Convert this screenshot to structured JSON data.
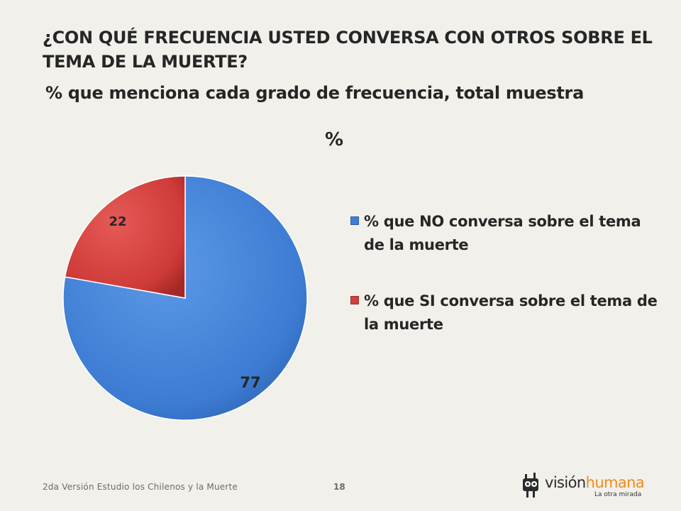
{
  "slide": {
    "title": "¿CON QUÉ FRECUENCIA USTED CONVERSA CON OTROS SOBRE EL TEMA DE LA MUERTE?",
    "subtitle": "% que menciona cada grado de frecuencia, total muestra"
  },
  "chart_data": {
    "type": "pie",
    "title": "%",
    "slices": [
      {
        "label": "% que NO conversa sobre el tema de la muerte",
        "value": 77,
        "data_label": "77",
        "color": "#3f7fd6"
      },
      {
        "label": "% que SI conversa sobre el tema de la muerte",
        "value": 22,
        "data_label": "22",
        "color": "#d23f3c"
      }
    ],
    "legend_position": "right",
    "start_angle": "12 o'clock",
    "direction": "clockwise"
  },
  "footer": {
    "text": "2da Versión Estudio los Chilenos y la Muerte",
    "page_number": "18"
  },
  "logo": {
    "text_dark": "visión",
    "text_accent": "humana",
    "tagline": "La otra mirada",
    "accent_color": "#f08a1c"
  }
}
